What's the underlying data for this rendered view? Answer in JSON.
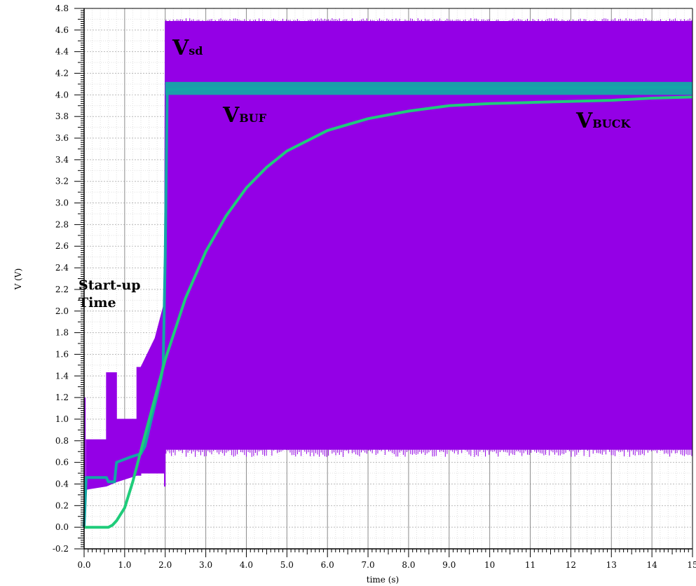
{
  "chart_data": {
    "type": "line",
    "title": "",
    "xlabel": "time (s)",
    "ylabel": "V (V)",
    "xlim": [
      0,
      15
    ],
    "ylim": [
      -0.2,
      4.8
    ],
    "grid": true,
    "x_ticks": [
      "0.0",
      "1.0",
      "2.0",
      "3.0",
      "4.0",
      "5.0",
      "6.0",
      "7.0",
      "8.0",
      "9.0",
      "10",
      "11",
      "12",
      "13",
      "14",
      "15"
    ],
    "y_ticks": [
      "-0.2",
      "0.0",
      "0.2",
      "0.4",
      "0.6",
      "0.8",
      "1.0",
      "1.2",
      "1.4",
      "1.6",
      "1.8",
      "2.0",
      "2.2",
      "2.4",
      "2.6",
      "2.8",
      "3.0",
      "3.2",
      "3.4",
      "3.6",
      "3.8",
      "4.0",
      "4.2",
      "4.4",
      "4.6",
      "4.8"
    ],
    "series": [
      {
        "name": "Vsd",
        "label_main": "V",
        "label_sub": "sd",
        "color": "#9400e6",
        "kind": "envelope",
        "x": [
          0.0,
          0.05,
          0.05,
          0.55,
          0.55,
          0.8,
          0.8,
          1.3,
          1.3,
          1.4,
          1.4,
          1.75,
          1.98,
          1.98,
          2.0,
          2.0,
          15.0
        ],
        "high": [
          0.35,
          0.35,
          0.81,
          0.81,
          1.43,
          1.43,
          1.0,
          1.0,
          1.48,
          1.48,
          1.48,
          1.75,
          2.08,
          2.08,
          4.68,
          4.68,
          4.68
        ],
        "low": [
          0.35,
          0.35,
          0.35,
          0.38,
          0.38,
          0.42,
          0.42,
          0.48,
          0.48,
          0.48,
          0.5,
          0.5,
          0.5,
          0.38,
          0.38,
          0.72,
          0.72
        ]
      },
      {
        "name": "VBUF",
        "label_main": "V",
        "label_sub": "BUF",
        "color": "#14a6a6",
        "x": [
          0.0,
          0.05,
          0.55,
          0.6,
          0.75,
          0.8,
          1.15,
          1.4,
          1.5,
          1.9,
          1.95,
          2.0,
          2.05,
          3.0,
          6.0,
          10.0,
          15.0
        ],
        "y": [
          0.0,
          0.46,
          0.46,
          0.42,
          0.42,
          0.6,
          0.65,
          0.68,
          0.75,
          1.38,
          1.5,
          2.5,
          4.05,
          4.06,
          4.06,
          4.06,
          4.07
        ]
      },
      {
        "name": "VBUCK",
        "label_main": "V",
        "label_sub": "BUCK",
        "color": "#1fcc7a",
        "x": [
          0.0,
          0.6,
          0.7,
          0.8,
          1.0,
          1.2,
          1.5,
          2.0,
          2.5,
          3.0,
          3.5,
          4.0,
          4.5,
          5.0,
          6.0,
          7.0,
          8.0,
          9.0,
          10.0,
          11.0,
          12.0,
          13.0,
          14.0,
          15.0
        ],
        "y": [
          0.0,
          0.0,
          0.02,
          0.06,
          0.18,
          0.42,
          0.85,
          1.55,
          2.12,
          2.55,
          2.88,
          3.14,
          3.33,
          3.48,
          3.67,
          3.78,
          3.85,
          3.9,
          3.92,
          3.93,
          3.94,
          3.95,
          3.97,
          3.98
        ]
      }
    ],
    "annotations": [
      {
        "text": "Start-up",
        "x": 0.5,
        "y": 2.2
      },
      {
        "text": "Time",
        "x": 0.5,
        "y": 2.0
      }
    ]
  }
}
